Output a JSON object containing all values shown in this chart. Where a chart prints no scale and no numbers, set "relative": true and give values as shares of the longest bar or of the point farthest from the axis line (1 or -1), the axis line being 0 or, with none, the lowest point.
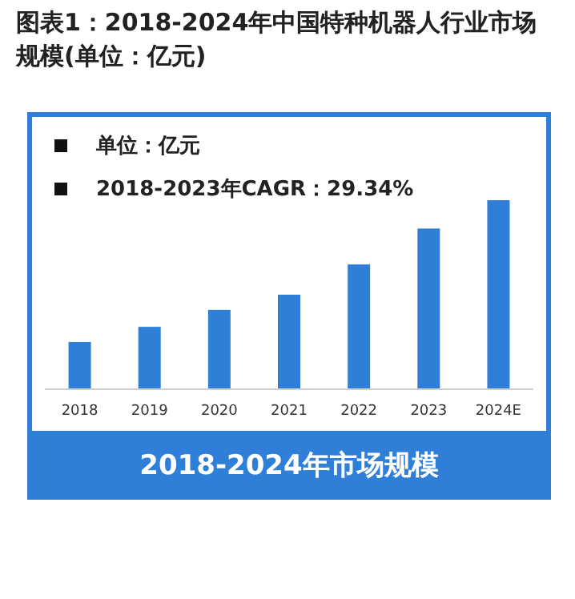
{
  "chart_data": {
    "type": "bar",
    "title": "图表1：2018-2024年中国特种机器人行业市场规模(单位：亿元)",
    "categories": [
      "2018",
      "2019",
      "2020",
      "2021",
      "2022",
      "2023",
      "2024E"
    ],
    "values": [
      0.25,
      0.33,
      0.42,
      0.5,
      0.66,
      0.85,
      1
    ],
    "color": "#2f7fd8",
    "relative": true,
    "annotations": [
      "单位：亿元",
      "2018-2023年CAGR：29.34%",
      "2018-2024年市场规模"
    ]
  }
}
